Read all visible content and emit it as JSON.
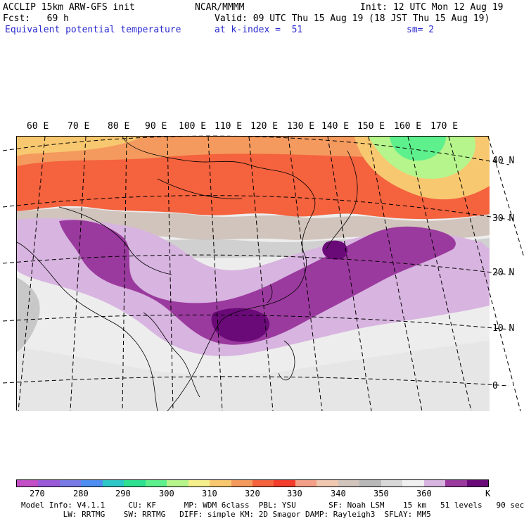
{
  "header": {
    "model_line": "ACCLIP 15km ARW-GFS init",
    "org": "NCAR/MMMM",
    "init": "Init: 12 UTC Mon 12 Aug 19",
    "fcst": "Fcst:   69 h",
    "valid": "Valid: 09 UTC Thu 15 Aug 19 (18 JST Thu 15 Aug 19)",
    "field": "Equivalent potential temperature",
    "level": "at k-index =  51",
    "smooth": "sm= 2"
  },
  "map": {
    "lon_labels": [
      "60 E",
      "70 E",
      "80 E",
      "90 E",
      "100 E",
      "110 E",
      "120 E",
      "130 E",
      "140 E",
      "150 E",
      "160 E",
      "170 E"
    ],
    "lat_labels": [
      "40 N",
      "30 N",
      "20 N",
      "10 N",
      "0"
    ]
  },
  "colorbar": {
    "colors": [
      "#c34fc6",
      "#9a5ad8",
      "#7a7ae6",
      "#4f8ef0",
      "#2ec7c7",
      "#2fe090",
      "#5ef08c",
      "#b5f58c",
      "#f5f08c",
      "#f8c870",
      "#f49a5e",
      "#f4623e",
      "#f23c2c",
      "#f4a088",
      "#f0c8b0",
      "#d0c4bc",
      "#b8b8b8",
      "#d8d8d8",
      "#f0f0f0",
      "#d8b4e0",
      "#9b3a9e",
      "#6a0a78"
    ],
    "tick_labels": [
      "270",
      "280",
      "290",
      "300",
      "310",
      "320",
      "330",
      "340",
      "350",
      "360"
    ],
    "unit": "K"
  },
  "footer": {
    "line1": "Model Info: V4.1.1     CU: KF      MP: WDM 6class  PBL: YSU       SF: Noah LSM    15 km   51 levels   90 sec",
    "line2": "         LW: RRTMG    SW: RRTMG   DIFF: simple KM: 2D Smagor DAMP: Rayleigh3  SFLAY: MM5"
  }
}
